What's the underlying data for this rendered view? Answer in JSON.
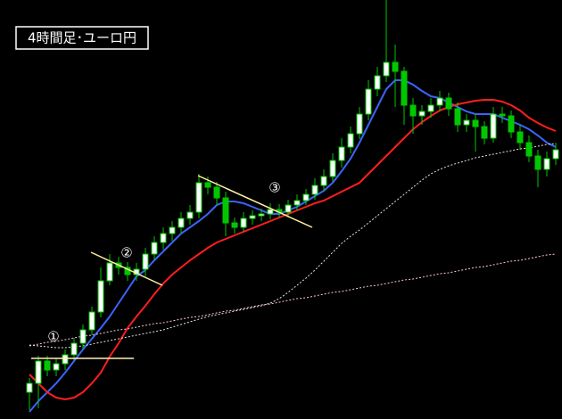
{
  "chart_data": {
    "type": "candlestick",
    "title": "4時間足･ユーロ円",
    "ylim": [
      0,
      470
    ],
    "up_color": "#ffffff",
    "down_color": "#00c800",
    "wick_color": "#00c800",
    "open": [
      30,
      40,
      65,
      55,
      62,
      72,
      85,
      100,
      120,
      155,
      175,
      170,
      162,
      168,
      185,
      198,
      208,
      215,
      225,
      232,
      265,
      260,
      248,
      220,
      215,
      225,
      228,
      230,
      235,
      232,
      240,
      245,
      252,
      262,
      272,
      290,
      305,
      320,
      342,
      370,
      385,
      400,
      390,
      352,
      340,
      345,
      352,
      360,
      348,
      330,
      335,
      328,
      315,
      342,
      340,
      322,
      310,
      295,
      280,
      292
    ],
    "high": [
      46,
      71,
      71,
      68,
      78,
      91,
      106,
      126,
      170,
      185,
      182,
      176,
      175,
      192,
      205,
      215,
      222,
      232,
      240,
      275,
      272,
      266,
      255,
      226,
      232,
      234,
      236,
      242,
      241,
      246,
      252,
      258,
      270,
      280,
      298,
      315,
      328,
      350,
      380,
      395,
      470,
      420,
      395,
      360,
      352,
      360,
      368,
      366,
      355,
      342,
      342,
      334,
      350,
      350,
      346,
      330,
      318,
      302,
      300,
      310
    ],
    "low": [
      10,
      12,
      48,
      48,
      55,
      66,
      78,
      94,
      114,
      150,
      162,
      155,
      155,
      160,
      178,
      190,
      200,
      208,
      218,
      225,
      252,
      240,
      205,
      208,
      210,
      218,
      222,
      224,
      226,
      226,
      234,
      240,
      246,
      255,
      266,
      282,
      298,
      314,
      335,
      362,
      378,
      350,
      330,
      320,
      330,
      338,
      345,
      340,
      322,
      322,
      300,
      308,
      310,
      332,
      315,
      302,
      288,
      260,
      272,
      285
    ],
    "close": [
      40,
      65,
      55,
      62,
      72,
      85,
      100,
      120,
      155,
      175,
      170,
      162,
      168,
      185,
      198,
      208,
      215,
      225,
      232,
      265,
      260,
      248,
      220,
      215,
      225,
      228,
      230,
      235,
      232,
      240,
      245,
      252,
      262,
      272,
      290,
      305,
      320,
      342,
      370,
      385,
      400,
      390,
      352,
      340,
      345,
      352,
      360,
      348,
      330,
      335,
      328,
      315,
      342,
      340,
      322,
      310,
      295,
      280,
      292,
      302
    ],
    "lines": [
      {
        "color": "#3c64ff",
        "dash": false,
        "values": [
          8,
          20,
          30,
          40,
          52,
          65,
          78,
          90,
          102,
          115,
          130,
          145,
          160,
          167,
          178,
          188,
          198,
          208,
          215,
          222,
          230,
          240,
          244,
          244,
          242,
          238,
          234,
          230,
          230,
          234,
          238,
          244,
          250,
          256,
          265,
          278,
          292,
          310,
          330,
          350,
          370,
          380,
          380,
          375,
          368,
          362,
          360,
          355,
          350,
          345,
          342,
          342,
          342,
          338,
          334,
          330,
          325,
          318,
          310,
          305
        ]
      },
      {
        "color": "#ff1e1e",
        "dash": false,
        "values": [
          50,
          40,
          30,
          24,
          22,
          24,
          30,
          40,
          52,
          70,
          85,
          102,
          115,
          127,
          140,
          152,
          162,
          170,
          178,
          185,
          192,
          198,
          202,
          206,
          210,
          214,
          218,
          222,
          226,
          230,
          234,
          238,
          242,
          245,
          250,
          255,
          260,
          265,
          275,
          285,
          295,
          305,
          315,
          325,
          333,
          340,
          346,
          350,
          353,
          355,
          357,
          358,
          358,
          356,
          352,
          346,
          338,
          332,
          327,
          323
        ]
      },
      {
        "color": "#e6e6e6",
        "dash": true,
        "values": [
          83,
          82,
          81,
          80,
          80,
          81,
          82,
          84,
          86,
          88,
          90,
          92,
          94,
          96,
          98,
          100,
          103,
          106,
          109,
          112,
          115,
          117,
          119,
          121,
          123,
          125,
          127,
          130,
          135,
          142,
          150,
          158,
          167,
          177,
          187,
          197,
          205,
          212,
          220,
          228,
          236,
          244,
          252,
          260,
          268,
          275,
          280,
          284,
          287,
          290,
          293,
          295,
          297,
          299,
          301,
          303,
          304,
          306,
          308,
          309
        ]
      },
      {
        "color": "#ffc8e6",
        "dash": true,
        "values": [
          82,
          84,
          86,
          87,
          89,
          91,
          93,
          94,
          96,
          98,
          100,
          101,
          103,
          105,
          107,
          108,
          110,
          112,
          114,
          115,
          117,
          119,
          121,
          122,
          124,
          126,
          128,
          129,
          131,
          133,
          135,
          136,
          138,
          140,
          142,
          143,
          145,
          147,
          149,
          150,
          152,
          154,
          156,
          157,
          159,
          161,
          163,
          164,
          166,
          168,
          170,
          171,
          173,
          175,
          177,
          178,
          180,
          182,
          184,
          185
        ]
      }
    ],
    "annotations": [
      {
        "text": "①"
      },
      {
        "text": "②"
      },
      {
        "text": "③"
      }
    ]
  }
}
